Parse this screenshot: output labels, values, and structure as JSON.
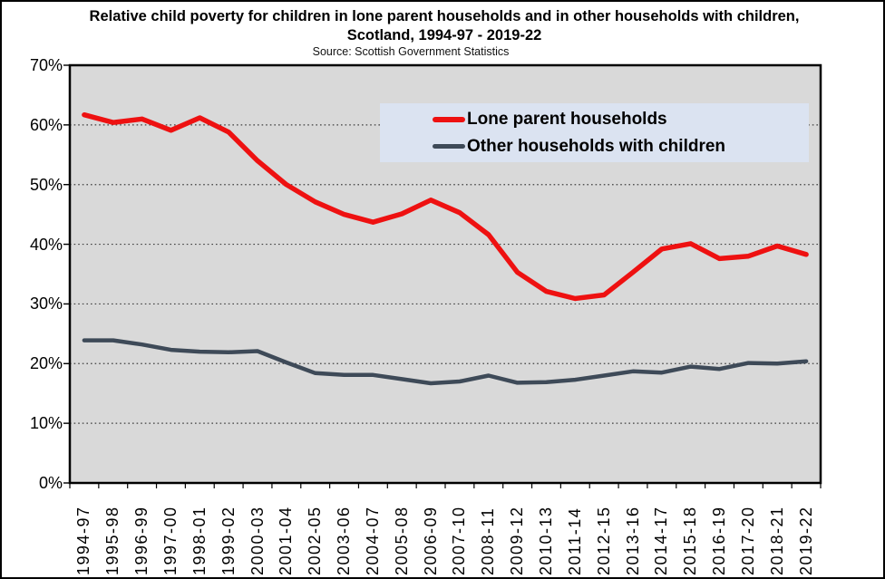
{
  "frame": {
    "background": "#ffffff",
    "border_color": "#000000"
  },
  "chart_data": {
    "type": "line",
    "title": "Relative child poverty for children in lone parent households and in other households with children, Scotland, 1994-97 - 2019-22",
    "subtitle": "Source: Scottish Government Statistics",
    "categories": [
      "1994-97",
      "1995-98",
      "1996-99",
      "1997-00",
      "1998-01",
      "1999-02",
      "2000-03",
      "2001-04",
      "2002-05",
      "2003-06",
      "2004-07",
      "2005-08",
      "2006-09",
      "2007-10",
      "2008-11",
      "2009-12",
      "2010-13",
      "2011-14",
      "2012-15",
      "2013-16",
      "2014-17",
      "2015-18",
      "2016-19",
      "2017-20",
      "2018-21",
      "2019-22"
    ],
    "series": [
      {
        "name": "Lone parent households",
        "color": "#ee1111",
        "line_width": 5.5,
        "values": [
          61.7,
          60.4,
          61.0,
          59.1,
          61.2,
          58.8,
          54.0,
          50.0,
          47.1,
          45.0,
          43.7,
          45.1,
          47.4,
          45.3,
          41.6,
          35.3,
          32.1,
          30.9,
          31.5,
          35.3,
          39.2,
          40.1,
          37.6,
          38.0,
          39.7,
          38.3
        ]
      },
      {
        "name": "Other households with children",
        "color": "#3e4a58",
        "line_width": 4.5,
        "values": [
          23.9,
          23.9,
          23.2,
          22.3,
          22.0,
          21.9,
          22.1,
          20.2,
          18.4,
          18.1,
          18.1,
          17.4,
          16.7,
          17.0,
          18.0,
          16.8,
          16.9,
          17.3,
          18.0,
          18.7,
          18.5,
          19.5,
          19.1,
          20.1,
          20.0,
          20.4
        ]
      }
    ],
    "ylim": [
      0,
      70
    ],
    "ytick_step": 10,
    "ytick_labels": [
      "0%",
      "10%",
      "20%",
      "30%",
      "40%",
      "50%",
      "60%",
      "70%"
    ],
    "x_labels_rotation_degrees": 90,
    "grid": "horizontal-dotted",
    "gridline_color": "#3f3f3f",
    "plot_background": "#d9d9d9",
    "axis_color": "#000000",
    "legend_position": "top-center-inside",
    "legend_background": "#dbe3f1"
  }
}
